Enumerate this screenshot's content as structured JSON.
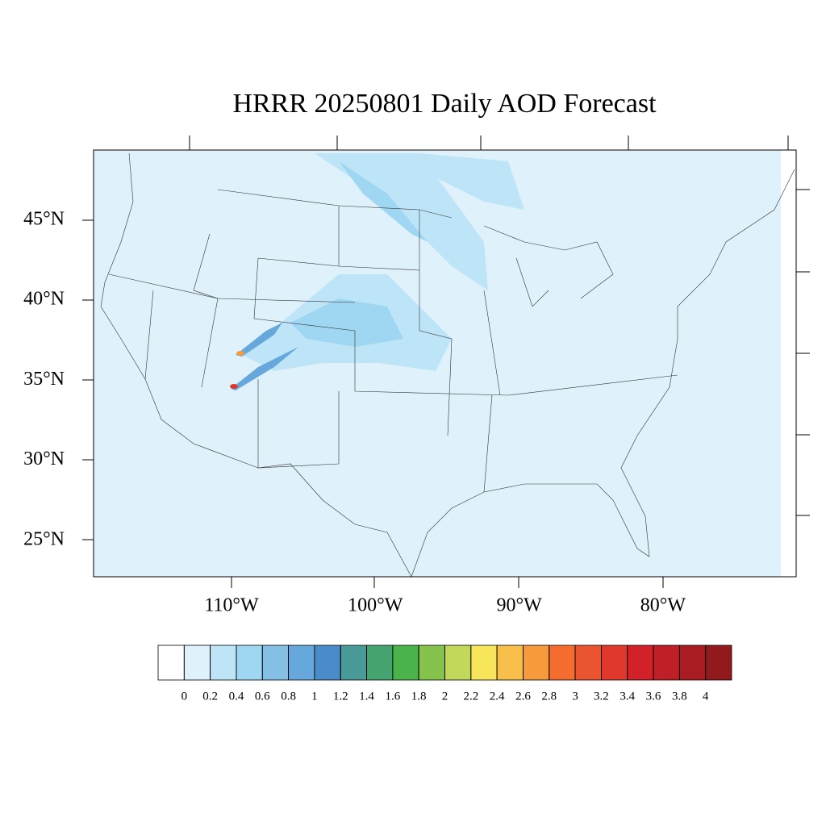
{
  "title": "HRRR 20250801 Daily AOD Forecast",
  "lat_labels": [
    "45°N",
    "40°N",
    "35°N",
    "30°N",
    "25°N"
  ],
  "lon_labels": [
    "110°W",
    "100°W",
    "90°W",
    "80°W"
  ],
  "colorbar": {
    "levels": [
      0,
      0.2,
      0.4,
      0.6,
      0.8,
      1,
      1.2,
      1.4,
      1.6,
      1.8,
      2,
      2.2,
      2.4,
      2.6,
      2.8,
      3,
      3.2,
      3.4,
      3.6,
      3.8,
      4
    ],
    "colors": [
      "#ffffff",
      "#dff1fb",
      "#bde5f7",
      "#9fd7f3",
      "#84bfe4",
      "#67a8dc",
      "#4a8bca",
      "#4a9a9a",
      "#46a470",
      "#4ab34a",
      "#86c34c",
      "#c2d85a",
      "#f7e65a",
      "#f8bf4a",
      "#f79a3c",
      "#f46d2e",
      "#eb5430",
      "#e1382c",
      "#d32129",
      "#bf1f26",
      "#a91c22",
      "#921a1d"
    ]
  }
}
